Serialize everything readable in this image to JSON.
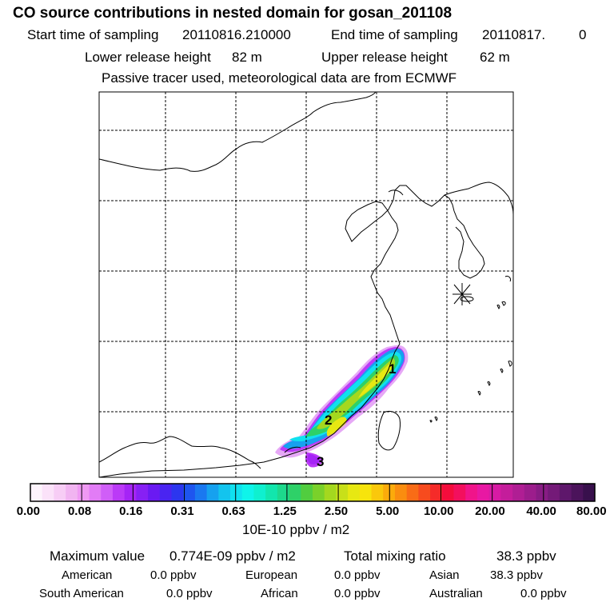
{
  "title": "CO  source contributions in nested domain for gosan_201108",
  "header": {
    "start_label": "Start time of sampling",
    "start_value": "20110816.210000",
    "end_label": "End time of sampling",
    "end_value": "20110817.",
    "end_value2": "0",
    "lower_label": "Lower release height",
    "lower_value": "82 m",
    "upper_label": "Upper release height",
    "upper_value": "62 m",
    "note": "Passive tracer used, meteorological data are from ECMWF"
  },
  "colorbar": {
    "ticks": [
      "0.00",
      "0.08",
      "0.16",
      "0.31",
      "0.63",
      "1.25",
      "2.50",
      "5.00",
      "10.00",
      "20.00",
      "40.00",
      "80.00"
    ],
    "colors": [
      "#fdf4fc",
      "#fbe2f9",
      "#f7cdf5",
      "#f1b4f1",
      "#ef99f3",
      "#e27cf6",
      "#d05ef8",
      "#bb3af7",
      "#a524f6",
      "#8720f4",
      "#6a1af2",
      "#4a24f1",
      "#2c36ef",
      "#1e55ef",
      "#1a78f0",
      "#16a1ef",
      "#13c4ee",
      "#10e1ef",
      "#0ff4ea",
      "#0ff0cf",
      "#12e6ad",
      "#1dd98c",
      "#2ed168",
      "#51cd3f",
      "#7ad12a",
      "#a4d81f",
      "#c8e019",
      "#e7e812",
      "#f7e40c",
      "#fac80b",
      "#fbab0b",
      "#fa8d0f",
      "#f96c16",
      "#f74b1e",
      "#f52b29",
      "#f40d3c",
      "#f30f5e",
      "#f0148a",
      "#e818a3",
      "#d71ba4",
      "#c41d9b",
      "#b01e94",
      "#9c1d8c",
      "#881c84",
      "#741a78",
      "#5e176b",
      "#4b135b",
      "#38104c"
    ],
    "unit": "10E-10 ppbv / m2"
  },
  "footer": {
    "max_label": "Maximum value",
    "max_value": "0.774E-09 ppbv / m2",
    "total_label": "Total mixing ratio",
    "total_value": "38.3 ppbv",
    "regions": [
      {
        "name": "American",
        "value": "0.0 ppbv"
      },
      {
        "name": "European",
        "value": "0.0 ppbv"
      },
      {
        "name": "Asian",
        "value": "38.3 ppbv"
      },
      {
        "name": "South American",
        "value": "0.0 ppbv"
      },
      {
        "name": "African",
        "value": "0.0 ppbv"
      },
      {
        "name": "Australian",
        "value": "0.0 ppbv"
      }
    ]
  },
  "map": {
    "markers": [
      "1",
      "2",
      "3"
    ]
  },
  "chart_data": {
    "type": "heatmap",
    "title": "CO  source contributions in nested domain for gosan_201108",
    "colorbar_levels": [
      0.0,
      0.08,
      0.16,
      0.31,
      0.63,
      1.25,
      2.5,
      5.0,
      10.0,
      20.0,
      40.0,
      80.0
    ],
    "colorbar_unit": "10E-10 ppbv / m2",
    "max_value": "0.774E-09 ppbv / m2",
    "total_mixing_ratio_ppbv": 38.3,
    "contributions_ppbv": {
      "American": 0.0,
      "European": 0.0,
      "Asian": 38.3,
      "South American": 0.0,
      "African": 0.0,
      "Australian": 0.0
    },
    "plume_labels": [
      "1",
      "2",
      "3"
    ],
    "grid": true
  }
}
